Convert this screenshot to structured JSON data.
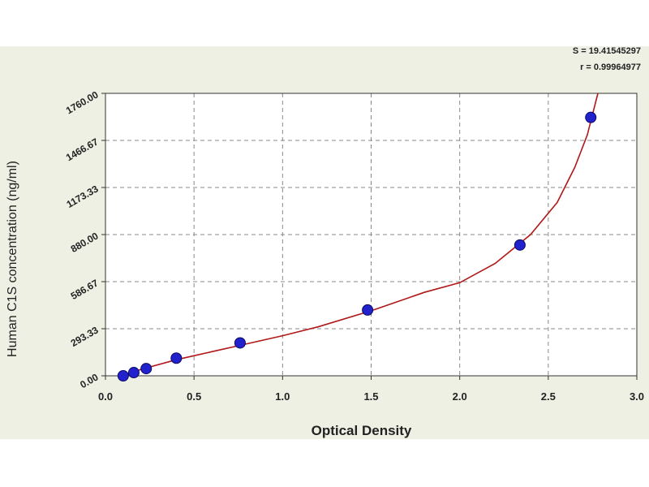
{
  "stats": {
    "s": "S = 19.41545297",
    "r": "r = 0.99964977"
  },
  "chart_data": {
    "type": "scatter",
    "xlabel": "Optical Density",
    "ylabel": "Human C1S concentration (ng/ml)",
    "xlim": [
      0.0,
      3.0
    ],
    "ylim": [
      0.0,
      1760.0
    ],
    "x_ticks": [
      "0.0",
      "0.5",
      "1.0",
      "1.5",
      "2.0",
      "2.5",
      "3.0"
    ],
    "y_ticks": [
      "0.00",
      "293.33",
      "586.67",
      "880.00",
      "1173.33",
      "1466.67",
      "1760.00"
    ],
    "grid": true,
    "series": [
      {
        "points": [
          {
            "x": 0.1,
            "y": 0
          },
          {
            "x": 0.16,
            "y": 20
          },
          {
            "x": 0.23,
            "y": 45
          },
          {
            "x": 0.4,
            "y": 110
          },
          {
            "x": 0.76,
            "y": 205
          },
          {
            "x": 1.48,
            "y": 410
          },
          {
            "x": 2.34,
            "y": 815
          },
          {
            "x": 2.74,
            "y": 1610
          }
        ],
        "marker_color": "#2222cc"
      }
    ],
    "fit_curve": {
      "color": "#b01818",
      "points": [
        {
          "x": 0.09,
          "y": 0
        },
        {
          "x": 0.2,
          "y": 40
        },
        {
          "x": 0.4,
          "y": 100
        },
        {
          "x": 0.6,
          "y": 150
        },
        {
          "x": 0.8,
          "y": 200
        },
        {
          "x": 1.0,
          "y": 250
        },
        {
          "x": 1.2,
          "y": 305
        },
        {
          "x": 1.5,
          "y": 405
        },
        {
          "x": 1.8,
          "y": 520
        },
        {
          "x": 2.0,
          "y": 580
        },
        {
          "x": 2.2,
          "y": 700
        },
        {
          "x": 2.4,
          "y": 880
        },
        {
          "x": 2.55,
          "y": 1080
        },
        {
          "x": 2.65,
          "y": 1300
        },
        {
          "x": 2.72,
          "y": 1500
        },
        {
          "x": 2.78,
          "y": 1760
        }
      ]
    }
  }
}
